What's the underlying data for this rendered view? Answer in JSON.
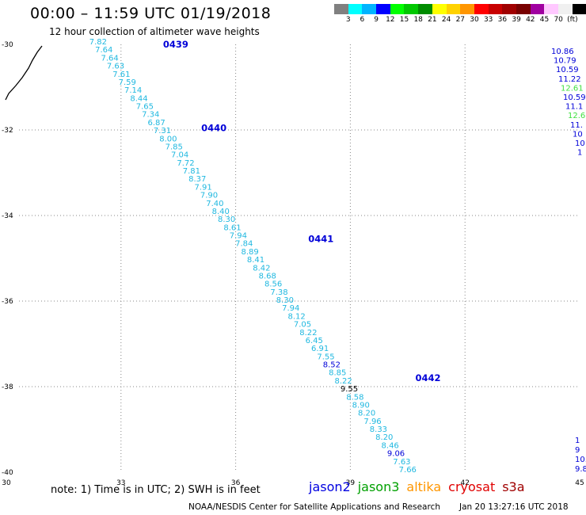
{
  "header": {
    "title": "00:00 – 11:59 UTC 01/19/2018",
    "subtitle": "12 hour collection of altimeter wave heights"
  },
  "legend": {
    "colors": [
      "#808080",
      "#00ffff",
      "#00b4ff",
      "#0000ff",
      "#00ff00",
      "#00c800",
      "#008c00",
      "#ffff00",
      "#ffd200",
      "#ff9600",
      "#ff0000",
      "#c80000",
      "#a00000",
      "#780000",
      "#a000a0",
      "#ffc8ff",
      "#f0f0f0",
      "#000000"
    ],
    "labels": [
      "3",
      "6",
      "9",
      "12",
      "15",
      "18",
      "21",
      "24",
      "27",
      "30",
      "33",
      "36",
      "39",
      "42",
      "45",
      "70",
      "(ft)"
    ]
  },
  "axes": {
    "x_ticks": [
      "30",
      "33",
      "36",
      "39",
      "42",
      "45"
    ],
    "y_ticks": [
      "-30",
      "-32",
      "-34",
      "-36",
      "-38",
      "-40"
    ]
  },
  "passes": [
    {
      "id": "0439",
      "lon": 34.1,
      "lat": -30.0
    },
    {
      "id": "0440",
      "lon": 35.1,
      "lat": -31.95
    },
    {
      "id": "0441",
      "lon": 37.9,
      "lat": -34.55
    },
    {
      "id": "0442",
      "lon": 40.7,
      "lat": -37.8
    }
  ],
  "track": {
    "color": "#20b8e0",
    "start": {
      "lon": 32.4,
      "lat": -30.0
    },
    "end": {
      "lon": 40.5,
      "lat": -40.0
    },
    "values": [
      "7.82",
      "7.64",
      "7.64",
      "7.63",
      "7.61",
      "7.59",
      "7.14",
      "8.44",
      "7.65",
      "7.34",
      "6.87",
      "7.31",
      "8.00",
      "7.85",
      "7.04",
      "7.72",
      "7.81",
      "8.37",
      "7.91",
      "7.90",
      "7.40",
      "8.40",
      "8.30",
      "8.61",
      "7.94",
      "7.84",
      "8.89",
      "8.41",
      "8.42",
      "8.68",
      "8.56",
      "7.38",
      "8.30",
      "7.94",
      "8.12",
      "7.05",
      "8.22",
      "6.45",
      "6.91",
      "7.55",
      "8.52",
      "8.85",
      "8.22",
      "9.55",
      "8.58",
      "8.90",
      "8.20",
      "7.96",
      "8.33",
      "8.20",
      "8.46",
      "9.06",
      "7.63",
      "7.66"
    ],
    "highlights": {
      "43": "#000000",
      "51": "#0000d8",
      "40": "#0000d8"
    }
  },
  "right_track_top": [
    {
      "v": "10.86",
      "c": "#0000d8"
    },
    {
      "v": "10.79",
      "c": "#0000d8"
    },
    {
      "v": "10.59",
      "c": "#0000d8"
    },
    {
      "v": "11.22",
      "c": "#0000d8"
    },
    {
      "v": "12.61",
      "c": "#40e040"
    },
    {
      "v": "10.59",
      "c": "#0000d8"
    },
    {
      "v": "11.1",
      "c": "#0000d8"
    },
    {
      "v": "12.6",
      "c": "#40e040"
    },
    {
      "v": "11.",
      "c": "#0000d8"
    },
    {
      "v": "10",
      "c": "#0000d8"
    },
    {
      "v": "10",
      "c": "#0000d8"
    },
    {
      "v": "1",
      "c": "#0000d8"
    }
  ],
  "right_track_bottom": [
    {
      "v": "1",
      "c": "#0000d8"
    },
    {
      "v": "9",
      "c": "#0000d8"
    },
    {
      "v": "10.",
      "c": "#0000d8"
    },
    {
      "v": "9.8",
      "c": "#0000d8"
    }
  ],
  "note": "note: 1) Time is in UTC; 2) SWH is in feet",
  "satellites": [
    {
      "name": "jason2",
      "color": "#0000e0"
    },
    {
      "name": "jason3",
      "color": "#00a000"
    },
    {
      "name": "altika",
      "color": "#ff9600"
    },
    {
      "name": "cryosat",
      "color": "#e00000"
    },
    {
      "name": "s3a",
      "color": "#a00000"
    }
  ],
  "footer": "NOAA/NESDIS Center for Satellite Applications and Research",
  "credit": "Jan 20 13:27:16 UTC 2018"
}
